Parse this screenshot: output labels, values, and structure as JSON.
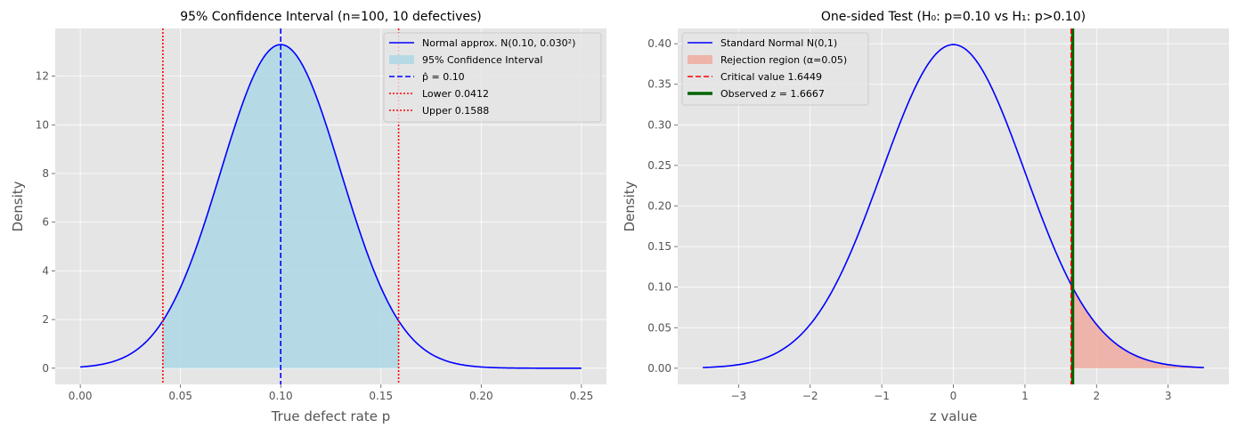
{
  "chart_data": [
    {
      "type": "line",
      "title": "95% Confidence Interval (n=100, 10 defectives)",
      "xlabel": "True defect rate p",
      "ylabel": "Density",
      "xlim": [
        -0.0125,
        0.2625
      ],
      "ylim": [
        -0.665,
        13.96
      ],
      "xticks": [
        0.0,
        0.05,
        0.1,
        0.15,
        0.2,
        0.25
      ],
      "xtick_labels": [
        "0.00",
        "0.05",
        "0.10",
        "0.15",
        "0.20",
        "0.25"
      ],
      "yticks": [
        0,
        2,
        4,
        6,
        8,
        10,
        12
      ],
      "ytick_labels": [
        "0",
        "2",
        "4",
        "6",
        "8",
        "10",
        "12"
      ],
      "grid": true,
      "legend_position": "top-right",
      "curve": {
        "type": "normal_pdf",
        "mean": 0.1,
        "sd": 0.03,
        "x_range": [
          0.0,
          0.25
        ],
        "color": "#0000ff"
      },
      "shaded": {
        "from": 0.0412,
        "to": 0.1588,
        "color": "#add8e6"
      },
      "vlines": [
        {
          "x": 0.1,
          "color": "#0000ff",
          "style": "dashed"
        },
        {
          "x": 0.0412,
          "color": "#ff0000",
          "style": "dotted"
        },
        {
          "x": 0.1588,
          "color": "#ff0000",
          "style": "dotted"
        }
      ],
      "legend": [
        {
          "label": "Normal approx. N(0.10, 0.030²)",
          "kind": "line",
          "color": "#0000ff",
          "style": "solid"
        },
        {
          "label": "95% Confidence Interval",
          "kind": "patch",
          "color": "#add8e6"
        },
        {
          "label": "p̂ = 0.10",
          "kind": "line",
          "color": "#0000ff",
          "style": "dashed"
        },
        {
          "label": "Lower 0.0412",
          "kind": "line",
          "color": "#ff0000",
          "style": "dotted"
        },
        {
          "label": "Upper 0.1588",
          "kind": "line",
          "color": "#ff0000",
          "style": "dotted"
        }
      ]
    },
    {
      "type": "line",
      "title": "One-sided Test (H₀: p=0.10 vs H₁: p>0.10)",
      "xlabel": "z value",
      "ylabel": "Density",
      "xlim": [
        -3.85,
        3.85
      ],
      "ylim": [
        -0.0199,
        0.4188
      ],
      "xticks": [
        -3,
        -2,
        -1,
        0,
        1,
        2,
        3
      ],
      "xtick_labels": [
        "−3",
        "−2",
        "−1",
        "0",
        "1",
        "2",
        "3"
      ],
      "yticks": [
        0.0,
        0.05,
        0.1,
        0.15,
        0.2,
        0.25,
        0.3,
        0.35,
        0.4
      ],
      "ytick_labels": [
        "0.00",
        "0.05",
        "0.10",
        "0.15",
        "0.20",
        "0.25",
        "0.30",
        "0.35",
        "0.40"
      ],
      "grid": true,
      "legend_position": "top-left",
      "curve": {
        "type": "normal_pdf",
        "mean": 0,
        "sd": 1,
        "x_range": [
          -3.5,
          3.5
        ],
        "color": "#0000ff"
      },
      "shaded": {
        "from": 1.6449,
        "to": 3.5,
        "color": "#f0aaa0"
      },
      "vlines": [
        {
          "x": 1.6667,
          "color": "#006400",
          "style": "solid-thick"
        },
        {
          "x": 1.6449,
          "color": "#ff0000",
          "style": "dashed"
        }
      ],
      "legend": [
        {
          "label": "Standard Normal N(0,1)",
          "kind": "line",
          "color": "#0000ff",
          "style": "solid"
        },
        {
          "label": "Rejection region (α=0.05)",
          "kind": "patch",
          "color": "#f0aaa0"
        },
        {
          "label": "Critical value 1.6449",
          "kind": "line",
          "color": "#ff0000",
          "style": "dashed"
        },
        {
          "label": "Observed z = 1.6667",
          "kind": "line",
          "color": "#006400",
          "style": "solid-thick"
        }
      ]
    }
  ]
}
